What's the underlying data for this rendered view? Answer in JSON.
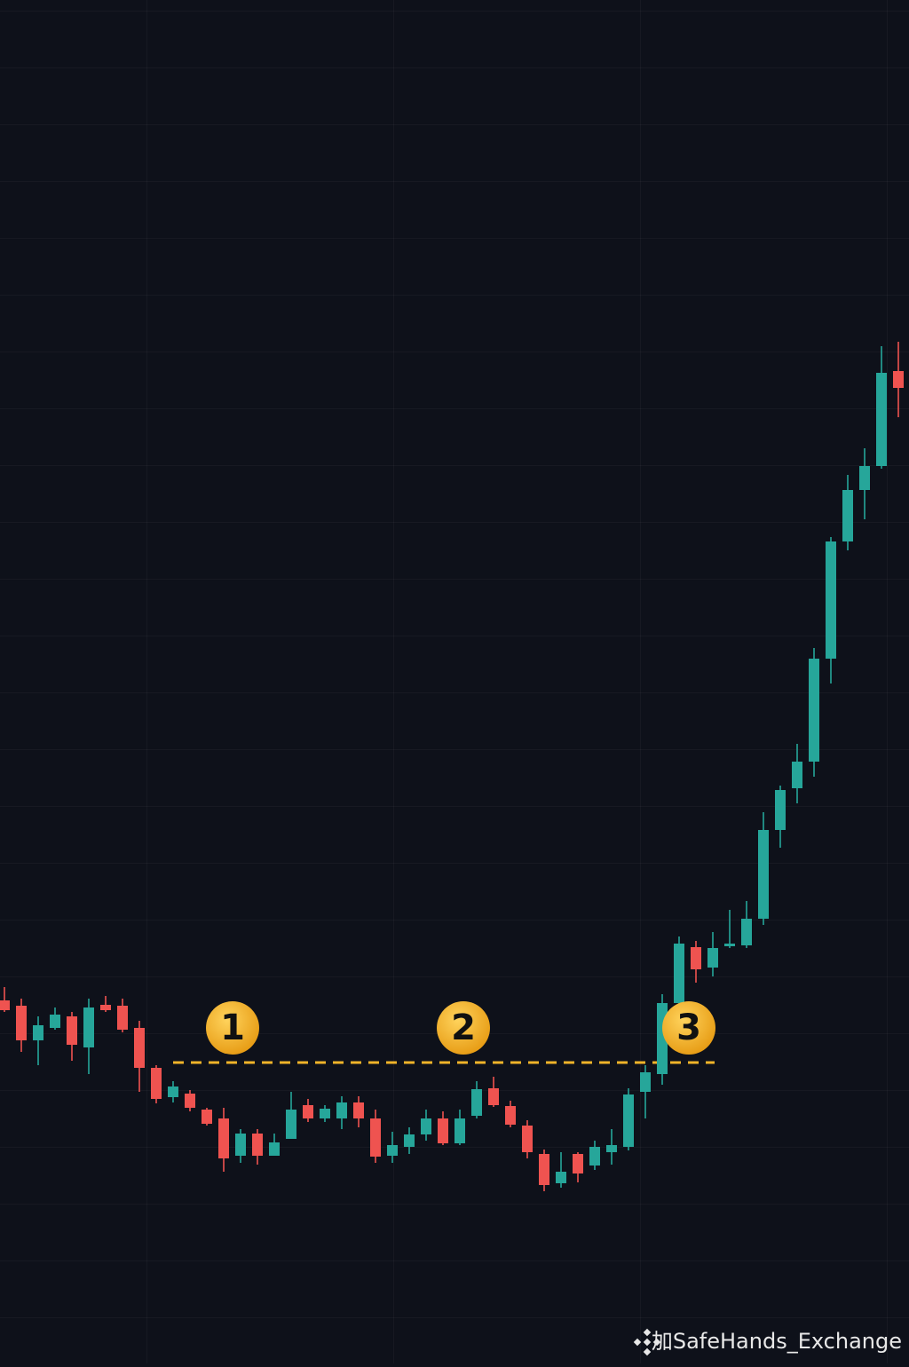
{
  "chart_data": {
    "type": "candlestick",
    "up_color": "#26a69a",
    "down_color": "#ef5350",
    "ylim": [
      0,
      1500
    ],
    "open": [
      373,
      367,
      328,
      342,
      355,
      320,
      368,
      367,
      342,
      297,
      264,
      268,
      250,
      240,
      198,
      223,
      198,
      217,
      255,
      240,
      240,
      258,
      240,
      198,
      208,
      222,
      240,
      212,
      243,
      274,
      254,
      232,
      200,
      167,
      200,
      187,
      202,
      208,
      270,
      290,
      370,
      433,
      410,
      434,
      435,
      465,
      565,
      612,
      642,
      758,
      890,
      948,
      975,
      1082
    ],
    "high": [
      388,
      375,
      355,
      365,
      360,
      375,
      378,
      375,
      350,
      300,
      282,
      272,
      252,
      252,
      228,
      228,
      223,
      270,
      262,
      255,
      265,
      265,
      250,
      225,
      230,
      250,
      248,
      250,
      282,
      287,
      260,
      238,
      205,
      202,
      202,
      215,
      228,
      274,
      300,
      380,
      445,
      440,
      450,
      475,
      485,
      585,
      615,
      662,
      770,
      895,
      965,
      995,
      1110,
      1115
    ],
    "low": [
      360,
      315,
      300,
      340,
      305,
      290,
      360,
      337,
      270,
      257,
      258,
      248,
      232,
      180,
      190,
      188,
      198,
      217,
      236,
      236,
      228,
      230,
      190,
      190,
      200,
      215,
      210,
      210,
      240,
      253,
      230,
      195,
      158,
      162,
      168,
      182,
      188,
      204,
      240,
      278,
      355,
      393,
      400,
      432,
      432,
      458,
      545,
      595,
      625,
      730,
      880,
      915,
      972,
      1030
    ],
    "close": [
      362,
      328,
      345,
      357,
      323,
      365,
      362,
      340,
      297,
      262,
      276,
      252,
      234,
      195,
      223,
      198,
      213,
      250,
      240,
      251,
      258,
      240,
      197,
      210,
      222,
      240,
      212,
      240,
      273,
      255,
      233,
      202,
      165,
      180,
      178,
      208,
      210,
      267,
      292,
      370,
      437,
      408,
      432,
      437,
      465,
      565,
      610,
      642,
      758,
      890,
      948,
      975,
      1080,
      1063
    ],
    "reference_line": {
      "value": 303,
      "color": "#f0b429"
    },
    "annotations": [
      {
        "label": "1"
      },
      {
        "label": "2"
      },
      {
        "label": "3"
      }
    ]
  },
  "watermark": "加SafeHands_Exchange"
}
